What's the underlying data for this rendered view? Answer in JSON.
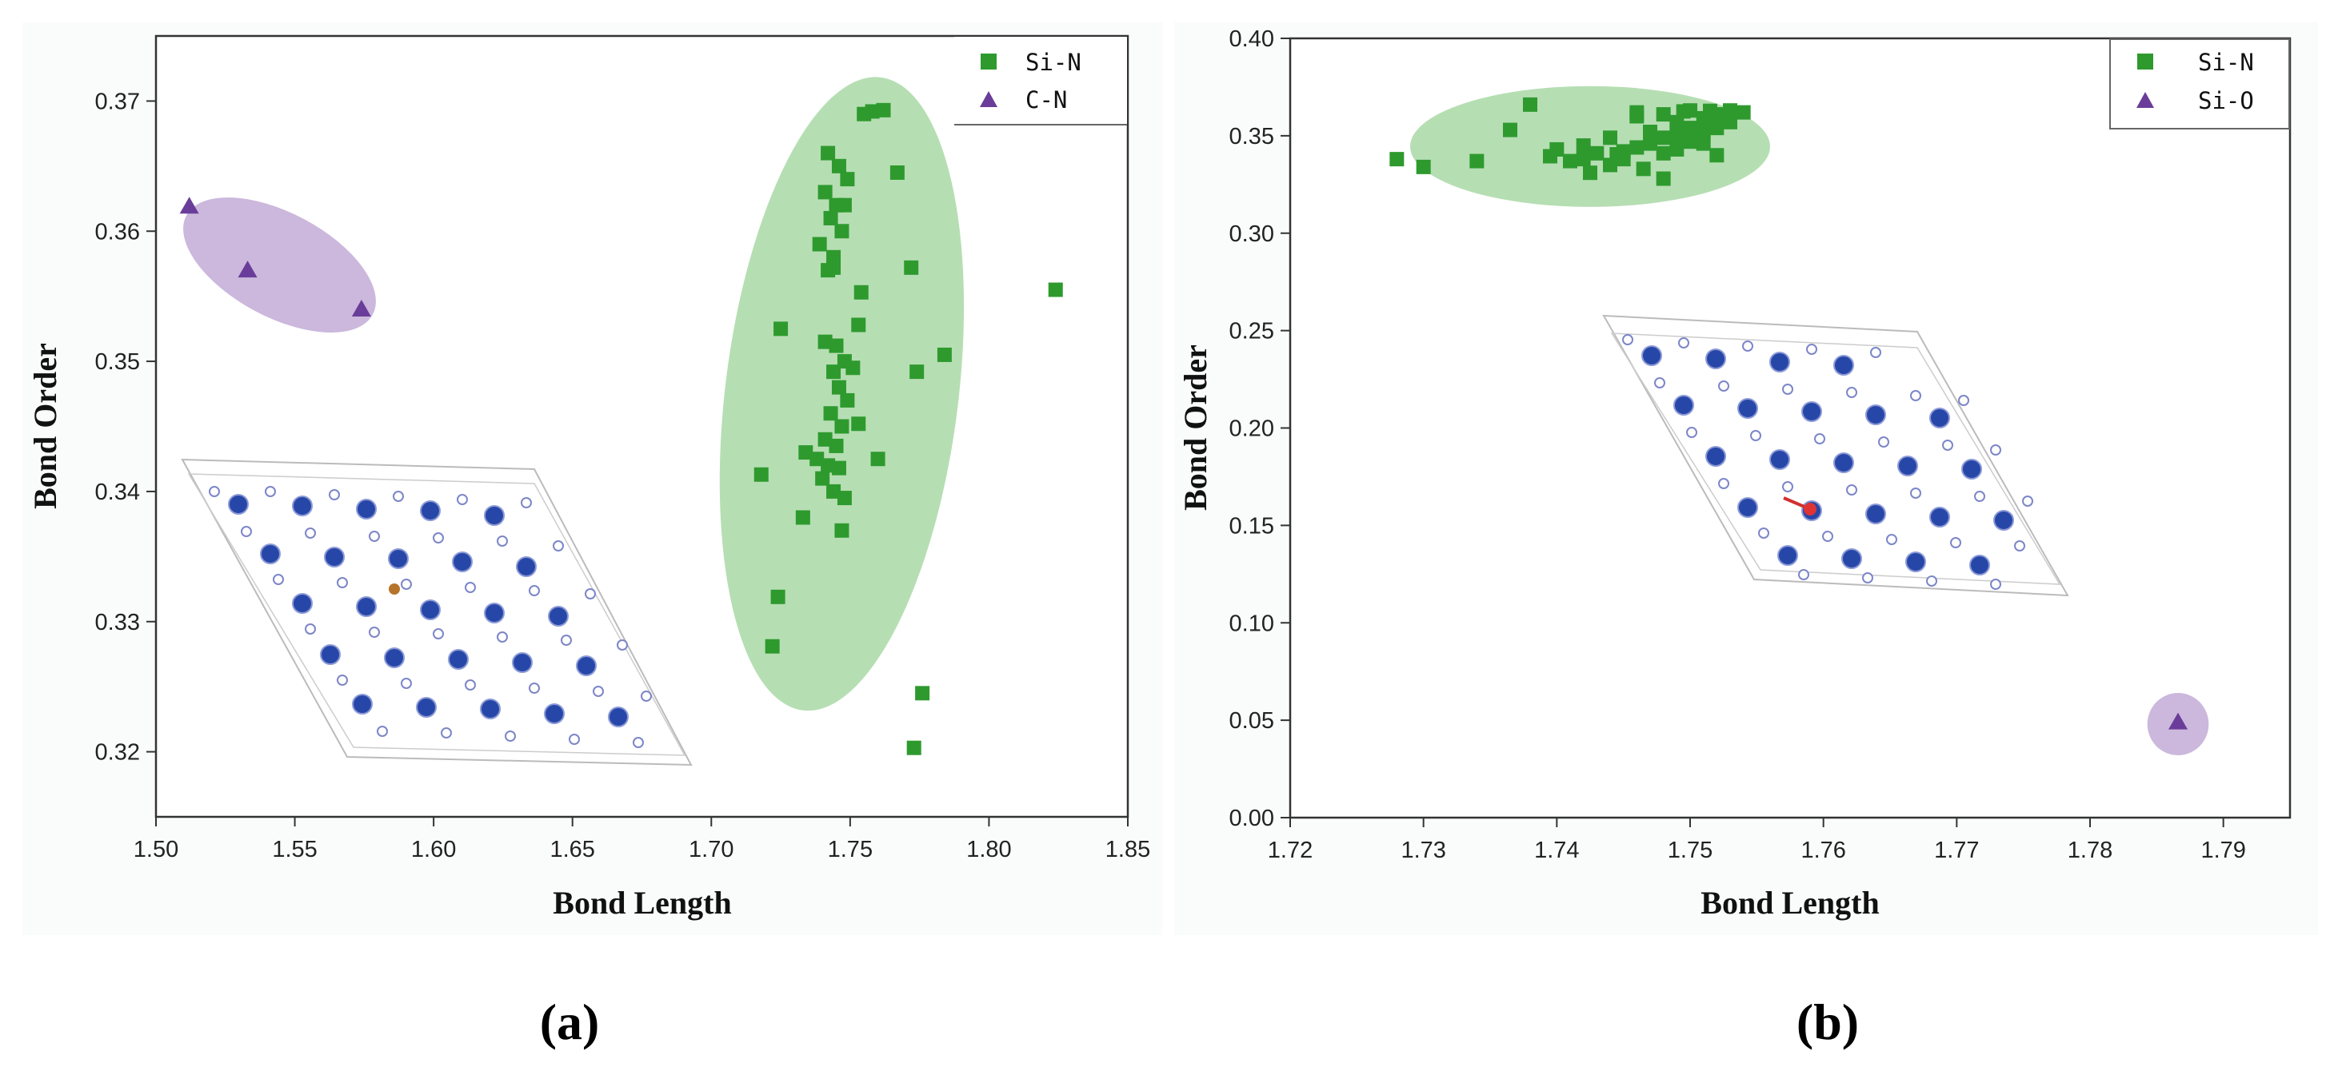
{
  "chart_data": [
    {
      "id": "a",
      "type": "scatter",
      "panel_label": "(a)",
      "xlabel": "Bond Length",
      "ylabel": "Bond Order",
      "xlim": [
        1.5,
        1.85
      ],
      "ylim": [
        0.315,
        0.375
      ],
      "xticks": [
        1.5,
        1.55,
        1.6,
        1.65,
        1.7,
        1.75,
        1.8,
        1.85
      ],
      "xtick_labels": [
        "1.50",
        "1.55",
        "1.60",
        "1.65",
        "1.70",
        "1.75",
        "1.80",
        "1.85"
      ],
      "yticks": [
        0.32,
        0.33,
        0.34,
        0.35,
        0.36,
        0.37
      ],
      "ytick_labels": [
        "0.32",
        "0.33",
        "0.34",
        "0.35",
        "0.36",
        "0.37"
      ],
      "legend_position": "top-right",
      "series": [
        {
          "name": "Si-N",
          "marker": "square",
          "color": "#2e9a2e",
          "points": [
            [
              1.742,
              0.366
            ],
            [
              1.746,
              0.365
            ],
            [
              1.749,
              0.364
            ],
            [
              1.741,
              0.363
            ],
            [
              1.745,
              0.362
            ],
            [
              1.748,
              0.362
            ],
            [
              1.743,
              0.361
            ],
            [
              1.747,
              0.36
            ],
            [
              1.739,
              0.359
            ],
            [
              1.744,
              0.358
            ],
            [
              1.755,
              0.369
            ],
            [
              1.758,
              0.3692
            ],
            [
              1.762,
              0.3693
            ],
            [
              1.767,
              0.3645
            ],
            [
              1.742,
              0.357
            ],
            [
              1.744,
              0.3572
            ],
            [
              1.772,
              0.3572
            ],
            [
              1.754,
              0.3553
            ],
            [
              1.725,
              0.3525
            ],
            [
              1.753,
              0.3528
            ],
            [
              1.741,
              0.3515
            ],
            [
              1.745,
              0.3512
            ],
            [
              1.748,
              0.35
            ],
            [
              1.751,
              0.3495
            ],
            [
              1.744,
              0.3492
            ],
            [
              1.746,
              0.348
            ],
            [
              1.749,
              0.347
            ],
            [
              1.743,
              0.346
            ],
            [
              1.747,
              0.345
            ],
            [
              1.753,
              0.3452
            ],
            [
              1.741,
              0.344
            ],
            [
              1.745,
              0.3435
            ],
            [
              1.734,
              0.343
            ],
            [
              1.738,
              0.3425
            ],
            [
              1.742,
              0.342
            ],
            [
              1.746,
              0.3418
            ],
            [
              1.74,
              0.341
            ],
            [
              1.744,
              0.34
            ],
            [
              1.748,
              0.3395
            ],
            [
              1.733,
              0.338
            ],
            [
              1.747,
              0.337
            ],
            [
              1.774,
              0.3492
            ],
            [
              1.784,
              0.3505
            ],
            [
              1.76,
              0.3425
            ],
            [
              1.718,
              0.3413
            ],
            [
              1.824,
              0.3555
            ],
            [
              1.724,
              0.3319
            ],
            [
              1.722,
              0.3281
            ],
            [
              1.776,
              0.3245
            ],
            [
              1.773,
              0.3203
            ]
          ]
        },
        {
          "name": "C-N",
          "marker": "triangle",
          "color": "#6a3d9a",
          "points": [
            [
              1.512,
              0.3619
            ],
            [
              1.533,
              0.357
            ],
            [
              1.574,
              0.354
            ]
          ]
        }
      ],
      "ellipses": [
        {
          "series": "Si-N",
          "color": "#a9d8a6",
          "center": [
            1.747,
            0.3475
          ],
          "rx": 0.042,
          "ry": 0.0245,
          "rotate": 7
        },
        {
          "series": "C-N",
          "color": "#c2abd6",
          "center": [
            1.5445,
            0.3574
          ],
          "rx": 0.038,
          "ry": 0.004,
          "rotate": 28
        }
      ]
    },
    {
      "id": "b",
      "type": "scatter",
      "panel_label": "(b)",
      "xlabel": "Bond Length",
      "ylabel": "Bond Order",
      "xlim": [
        1.72,
        1.795
      ],
      "ylim": [
        0.0,
        0.4
      ],
      "xticks": [
        1.72,
        1.73,
        1.74,
        1.75,
        1.76,
        1.77,
        1.78,
        1.79
      ],
      "xtick_labels": [
        "1.72",
        "1.73",
        "1.74",
        "1.75",
        "1.76",
        "1.77",
        "1.78",
        "1.79"
      ],
      "yticks": [
        0.0,
        0.05,
        0.1,
        0.15,
        0.2,
        0.25,
        0.3,
        0.35,
        0.4
      ],
      "ytick_labels": [
        "0.00",
        "0.05",
        "0.10",
        "0.15",
        "0.20",
        "0.25",
        "0.30",
        "0.35",
        "0.40"
      ],
      "legend_position": "top-right",
      "series": [
        {
          "name": "Si-N",
          "marker": "square",
          "color": "#2e9a2e",
          "points": [
            [
              1.728,
              0.338
            ],
            [
              1.73,
              0.334
            ],
            [
              1.734,
              0.337
            ],
            [
              1.7365,
              0.353
            ],
            [
              1.738,
              0.366
            ],
            [
              1.74,
              0.343
            ],
            [
              1.741,
              0.337
            ],
            [
              1.742,
              0.345
            ],
            [
              1.742,
              0.338
            ],
            [
              1.7425,
              0.331
            ],
            [
              1.743,
              0.341
            ],
            [
              1.744,
              0.349
            ],
            [
              1.744,
              0.335
            ],
            [
              1.745,
              0.342
            ],
            [
              1.745,
              0.338
            ],
            [
              1.746,
              0.362
            ],
            [
              1.746,
              0.344
            ],
            [
              1.7465,
              0.333
            ],
            [
              1.747,
              0.352
            ],
            [
              1.747,
              0.346
            ],
            [
              1.748,
              0.361
            ],
            [
              1.748,
              0.349
            ],
            [
              1.748,
              0.341
            ],
            [
              1.748,
              0.328
            ],
            [
              1.749,
              0.357
            ],
            [
              1.749,
              0.35
            ],
            [
              1.749,
              0.343
            ],
            [
              1.75,
              0.363
            ],
            [
              1.75,
              0.354
            ],
            [
              1.75,
              0.347
            ],
            [
              1.751,
              0.359
            ],
            [
              1.751,
              0.352
            ],
            [
              1.751,
              0.346
            ],
            [
              1.752,
              0.361
            ],
            [
              1.752,
              0.354
            ],
            [
              1.752,
              0.34
            ],
            [
              1.753,
              0.363
            ],
            [
              1.753,
              0.357
            ],
            [
              1.754,
              0.362
            ],
            [
              1.746,
              0.36
            ],
            [
              1.7495,
              0.3625
            ],
            [
              1.7515,
              0.3628
            ],
            [
              1.7445,
              0.3405
            ],
            [
              1.7395,
              0.3395
            ]
          ]
        },
        {
          "name": "Si-O",
          "marker": "triangle",
          "color": "#6a3d9a",
          "points": [
            [
              1.7866,
              0.049
            ]
          ]
        }
      ],
      "ellipses": [
        {
          "series": "Si-N",
          "color": "#a9d8a6",
          "center": [
            1.7425,
            0.3445
          ],
          "rx": 0.0135,
          "ry": 0.031,
          "rotate": 0
        },
        {
          "series": "Si-O",
          "color": "#c2abd6",
          "center": [
            1.7866,
            0.048
          ],
          "rx": 0.0023,
          "ry": 0.016,
          "rotate": 0
        }
      ]
    }
  ]
}
